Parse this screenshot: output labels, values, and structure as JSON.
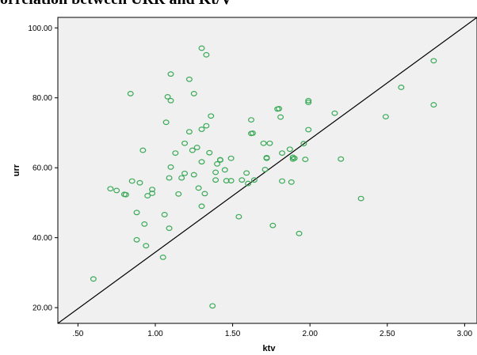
{
  "chart_data": {
    "type": "scatter",
    "title": "orrelation between URR and Kt/V",
    "xlabel": "ktv",
    "ylabel": "urr",
    "xlim": [
      0.37,
      3.08
    ],
    "ylim": [
      15.5,
      103
    ],
    "xticks": [
      ".50",
      "1.00",
      "1.50",
      "2.00",
      "2.50",
      "3.00"
    ],
    "yticks": [
      "20.00",
      "40.00",
      "60.00",
      "80.00",
      "100.00"
    ],
    "grid": false,
    "reference_line": {
      "from": [
        0.37,
        15.5
      ],
      "to": [
        3.08,
        103.0
      ]
    },
    "colors": {
      "marker": "#3aaa57",
      "line": "#000000",
      "plot_background": "#f0f0f0"
    },
    "points": [
      [
        0.6,
        28.2
      ],
      [
        0.71,
        54.0
      ],
      [
        0.75,
        53.5
      ],
      [
        0.8,
        52.4
      ],
      [
        0.81,
        52.3
      ],
      [
        0.84,
        81.2
      ],
      [
        0.85,
        56.2
      ],
      [
        0.88,
        47.2
      ],
      [
        0.88,
        39.4
      ],
      [
        0.9,
        55.7
      ],
      [
        0.92,
        65.0
      ],
      [
        0.93,
        43.9
      ],
      [
        0.94,
        37.7
      ],
      [
        0.95,
        52.0
      ],
      [
        0.98,
        52.7
      ],
      [
        0.98,
        53.8
      ],
      [
        1.05,
        34.4
      ],
      [
        1.06,
        46.6
      ],
      [
        1.07,
        73.0
      ],
      [
        1.08,
        80.3
      ],
      [
        1.09,
        42.7
      ],
      [
        1.09,
        57.1
      ],
      [
        1.1,
        60.2
      ],
      [
        1.1,
        79.2
      ],
      [
        1.1,
        86.8
      ],
      [
        1.13,
        64.2
      ],
      [
        1.15,
        52.5
      ],
      [
        1.17,
        57.1
      ],
      [
        1.19,
        67.0
      ],
      [
        1.19,
        58.4
      ],
      [
        1.22,
        70.3
      ],
      [
        1.22,
        85.3
      ],
      [
        1.24,
        65.0
      ],
      [
        1.25,
        81.2
      ],
      [
        1.25,
        58.0
      ],
      [
        1.27,
        65.8
      ],
      [
        1.28,
        54.2
      ],
      [
        1.3,
        94.2
      ],
      [
        1.3,
        49.0
      ],
      [
        1.3,
        61.7
      ],
      [
        1.3,
        71.0
      ],
      [
        1.32,
        52.6
      ],
      [
        1.33,
        92.3
      ],
      [
        1.33,
        72.0
      ],
      [
        1.35,
        64.3
      ],
      [
        1.36,
        74.8
      ],
      [
        1.37,
        20.5
      ],
      [
        1.39,
        58.7
      ],
      [
        1.39,
        56.5
      ],
      [
        1.4,
        61.1
      ],
      [
        1.42,
        62.2
      ],
      [
        1.42,
        62.3
      ],
      [
        1.45,
        59.4
      ],
      [
        1.46,
        56.3
      ],
      [
        1.49,
        62.7
      ],
      [
        1.49,
        56.3
      ],
      [
        1.54,
        46.0
      ],
      [
        1.56,
        56.5
      ],
      [
        1.59,
        58.5
      ],
      [
        1.6,
        55.5
      ],
      [
        1.62,
        73.7
      ],
      [
        1.62,
        69.8
      ],
      [
        1.63,
        69.9
      ],
      [
        1.64,
        56.5
      ],
      [
        1.7,
        67.0
      ],
      [
        1.71,
        59.5
      ],
      [
        1.72,
        62.7
      ],
      [
        1.72,
        62.9
      ],
      [
        1.74,
        67.0
      ],
      [
        1.76,
        43.5
      ],
      [
        1.79,
        76.8
      ],
      [
        1.8,
        76.9
      ],
      [
        1.81,
        74.5
      ],
      [
        1.82,
        64.2
      ],
      [
        1.82,
        56.2
      ],
      [
        1.87,
        65.3
      ],
      [
        1.88,
        55.9
      ],
      [
        1.89,
        62.5
      ],
      [
        1.89,
        63.0
      ],
      [
        1.9,
        62.7
      ],
      [
        1.93,
        41.2
      ],
      [
        1.96,
        66.9
      ],
      [
        1.97,
        62.4
      ],
      [
        1.99,
        79.2
      ],
      [
        1.99,
        78.7
      ],
      [
        1.99,
        70.9
      ],
      [
        2.16,
        75.6
      ],
      [
        2.2,
        62.5
      ],
      [
        2.33,
        51.2
      ],
      [
        2.49,
        74.6
      ],
      [
        2.59,
        83.0
      ],
      [
        2.8,
        90.6
      ],
      [
        2.8,
        78.0
      ]
    ]
  }
}
